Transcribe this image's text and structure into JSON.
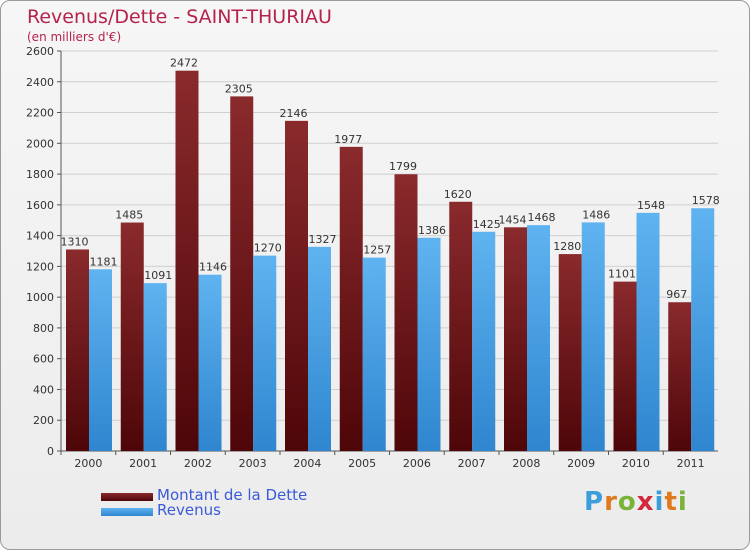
{
  "title": "Revenus/Dette - SAINT-THURIAU",
  "subtitle": "(en milliers d'€)",
  "legend": [
    {
      "label": "Montant de la Dette",
      "color": "#6b0f12"
    },
    {
      "label": "Revenus",
      "color": "#4aa3e8"
    }
  ],
  "logo": {
    "text": "Proxiti",
    "letters": [
      {
        "ch": "P",
        "color": "#3b9dd9"
      },
      {
        "ch": "r",
        "color": "#e07a1f"
      },
      {
        "ch": "o",
        "color": "#7ab33a"
      },
      {
        "ch": "x",
        "color": "#d4283c"
      },
      {
        "ch": "i",
        "color": "#3b9dd9"
      },
      {
        "ch": "t",
        "color": "#e07a1f"
      },
      {
        "ch": "i",
        "color": "#7ab33a"
      }
    ]
  },
  "chart_data": {
    "type": "bar",
    "categories": [
      "2000",
      "2001",
      "2002",
      "2003",
      "2004",
      "2005",
      "2006",
      "2007",
      "2008",
      "2009",
      "2010",
      "2011"
    ],
    "series": [
      {
        "name": "Montant de la Dette",
        "color": "#6b0f12",
        "values": [
          1310,
          1485,
          2472,
          2305,
          2146,
          1977,
          1799,
          1620,
          1454,
          1280,
          1101,
          967
        ]
      },
      {
        "name": "Revenus",
        "color": "#4aa3e8",
        "values": [
          1181,
          1091,
          1146,
          1270,
          1327,
          1257,
          1386,
          1425,
          1468,
          1486,
          1548,
          1578
        ]
      }
    ],
    "ylim": [
      0,
      2600
    ],
    "yticks": [
      0,
      200,
      400,
      600,
      800,
      1000,
      1200,
      1400,
      1600,
      1800,
      2000,
      2200,
      2400,
      2600
    ],
    "grid": true,
    "xlabel": "",
    "ylabel": ""
  }
}
